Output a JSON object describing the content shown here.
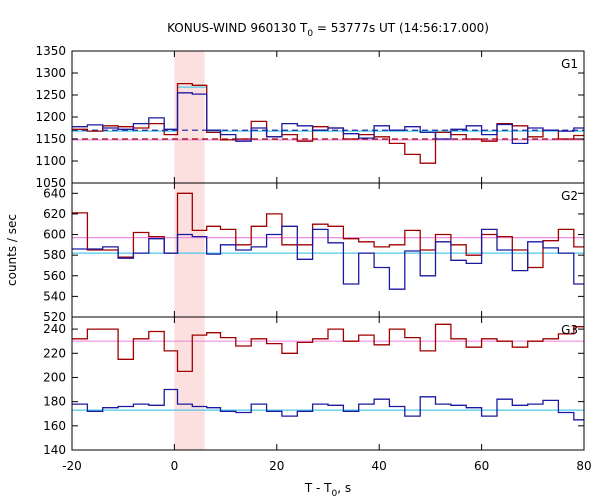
{
  "chart_data": {
    "type": "line",
    "title": "KONUS-WIND 960130 T",
    "title_sub": "0",
    "title_rest": " = 53777s UT (14:56:17.000)",
    "xlabel": "T - T",
    "xlabel_sub": "0",
    "xlabel_rest": ", s",
    "ylabel": "counts / sec",
    "xlim": [
      -20,
      80
    ],
    "xticks": [
      -20,
      0,
      20,
      40,
      60,
      80
    ],
    "xticklabels": [
      "-20",
      "0",
      "20",
      "40",
      "60",
      "80"
    ],
    "highlight_interval": [
      0,
      5.9
    ],
    "colors": {
      "dark_red": "#a00000",
      "dark_blue": "#1a1aa0",
      "cyan": "#4fc8e8",
      "pink": "#ee8ee0",
      "highlight": "#fbd6d6"
    },
    "panels": [
      {
        "label": "G1",
        "ylim": [
          1050,
          1350
        ],
        "yticks": [
          1050,
          1100,
          1150,
          1200,
          1250,
          1300,
          1350
        ],
        "yticklabels": [
          "1050",
          "1100",
          "1150",
          "1200",
          "1250",
          "1300",
          "1350"
        ],
        "bins": [
          -20,
          -17,
          -14,
          -11,
          -8,
          -5,
          -2,
          0.6,
          3.5,
          6.3,
          9,
          12,
          15,
          18,
          21,
          24,
          27,
          30,
          33,
          36,
          39,
          42,
          45,
          48,
          51,
          54,
          57,
          60,
          63,
          66,
          69,
          72,
          75,
          78,
          80
        ],
        "series": [
          {
            "name": "",
            "color_key": "dark_red",
            "values": [
              1172,
              1168,
              1180,
              1178,
              1175,
              1185,
              1160,
              1276,
              1272,
              1165,
              1148,
              1150,
              1190,
              1155,
              1160,
              1145,
              1178,
              1175,
              1150,
              1160,
              1155,
              1140,
              1115,
              1095,
              1165,
              1160,
              1150,
              1145,
              1185,
              1180,
              1155,
              1170,
              1150,
              1158
            ]
          },
          {
            "name": "",
            "color_key": "dark_blue",
            "values": [
              1178,
              1182,
              1175,
              1172,
              1185,
              1198,
              1172,
              1255,
              1252,
              1170,
              1160,
              1145,
              1175,
              1155,
              1185,
              1180,
              1170,
              1175,
              1162,
              1152,
              1180,
              1170,
              1178,
              1165,
              1150,
              1172,
              1180,
              1160,
              1183,
              1140,
              1175,
              1170,
              1168,
              1175
            ]
          }
        ],
        "fits": [
          {
            "color_key": "cyan",
            "values": [
              1168,
              1168,
              1168,
              1168,
              1168,
              1168,
              1168,
              1268,
              1268,
              1168,
              1168,
              1168,
              1168,
              1168,
              1168,
              1168,
              1168,
              1168,
              1168,
              1168,
              1168,
              1168,
              1168,
              1168,
              1168,
              1168,
              1168,
              1168,
              1168,
              1168,
              1168,
              1168,
              1168,
              1168
            ]
          },
          {
            "color_key": "pink",
            "values": [
              1148,
              1148,
              1148,
              1148,
              1148,
              1148,
              1148,
              1148,
              1148,
              1148,
              1148,
              1148,
              1148,
              1148,
              1148,
              1148,
              1148,
              1148,
              1148,
              1148,
              1148,
              1148,
              1148,
              1148,
              1148,
              1148,
              1148,
              1148,
              1148,
              1148,
              1148,
              1148,
              1148,
              1148
            ]
          }
        ],
        "dashed": [
          {
            "color_key": "dark_blue",
            "x": [
              -20,
              80
            ],
            "y": [
              1170,
              1170
            ]
          },
          {
            "color_key": "dark_red",
            "x": [
              -20,
              80
            ],
            "y": [
              1150,
              1150
            ]
          }
        ]
      },
      {
        "label": "G2",
        "ylim": [
          520,
          650
        ],
        "yticks": [
          520,
          540,
          560,
          580,
          600,
          620,
          640
        ],
        "yticklabels": [
          "520",
          "540",
          "560",
          "580",
          "600",
          "620",
          "640"
        ],
        "bins": [
          -20,
          -17,
          -14,
          -11,
          -8,
          -5,
          -2,
          0.6,
          3.5,
          6.3,
          9,
          12,
          15,
          18,
          21,
          24,
          27,
          30,
          33,
          36,
          39,
          42,
          45,
          48,
          51,
          54,
          57,
          60,
          63,
          66,
          69,
          72,
          75,
          78,
          80
        ],
        "series": [
          {
            "name": "",
            "color_key": "dark_red",
            "values": [
              621,
              585,
              585,
              578,
              602,
              598,
              582,
              640,
              604,
              608,
              605,
              590,
              608,
              620,
              590,
              590,
              610,
              608,
              596,
              593,
              588,
              590,
              604,
              585,
              600,
              590,
              580,
              600,
              598,
              585,
              568,
              594,
              605,
              588
            ]
          },
          {
            "name": "",
            "color_key": "dark_blue",
            "values": [
              586,
              586,
              588,
              577,
              582,
              596,
              582,
              600,
              598,
              581,
              590,
              585,
              588,
              600,
              608,
              576,
              605,
              592,
              552,
              582,
              568,
              547,
              584,
              560,
              593,
              575,
              572,
              605,
              585,
              565,
              593,
              587,
              582,
              552
            ]
          }
        ],
        "fits": [
          {
            "color_key": "cyan",
            "values": [
              582,
              582,
              582,
              582,
              582,
              582,
              582,
              582,
              582,
              582,
              582,
              582,
              582,
              582,
              582,
              582,
              582,
              582,
              582,
              582,
              582,
              582,
              582,
              582,
              582,
              582,
              582,
              582,
              582,
              582,
              582,
              582,
              582,
              582
            ]
          },
          {
            "color_key": "pink",
            "values": [
              597,
              597,
              597,
              597,
              597,
              597,
              597,
              597,
              597,
              597,
              597,
              597,
              597,
              597,
              597,
              597,
              597,
              597,
              597,
              597,
              597,
              597,
              597,
              597,
              597,
              597,
              597,
              597,
              597,
              597,
              597,
              597,
              597,
              597
            ]
          }
        ],
        "dashed": []
      },
      {
        "label": "G3",
        "ylim": [
          140,
          250
        ],
        "yticks": [
          140,
          160,
          180,
          200,
          220,
          240
        ],
        "yticklabels": [
          "140",
          "160",
          "180",
          "200",
          "220",
          "240"
        ],
        "bins": [
          -20,
          -17,
          -14,
          -11,
          -8,
          -5,
          -2,
          0.6,
          3.5,
          6.3,
          9,
          12,
          15,
          18,
          21,
          24,
          27,
          30,
          33,
          36,
          39,
          42,
          45,
          48,
          51,
          54,
          57,
          60,
          63,
          66,
          69,
          72,
          75,
          78,
          80
        ],
        "series": [
          {
            "name": "",
            "color_key": "dark_red",
            "values": [
              232,
              240,
              240,
              215,
              232,
              238,
              222,
              205,
              235,
              237,
              233,
              226,
              232,
              228,
              220,
              229,
              232,
              240,
              230,
              235,
              227,
              240,
              233,
              222,
              244,
              232,
              225,
              232,
              230,
              225,
              230,
              232,
              236,
              242
            ]
          },
          {
            "name": "",
            "color_key": "dark_blue",
            "values": [
              178,
              172,
              175,
              176,
              178,
              177,
              190,
              178,
              176,
              175,
              172,
              171,
              178,
              172,
              168,
              172,
              178,
              177,
              172,
              178,
              182,
              176,
              168,
              184,
              178,
              177,
              175,
              168,
              182,
              177,
              178,
              181,
              171,
              165
            ]
          }
        ],
        "fits": [
          {
            "color_key": "cyan",
            "values": [
              173,
              173,
              173,
              173,
              173,
              173,
              173,
              173,
              173,
              173,
              173,
              173,
              173,
              173,
              173,
              173,
              173,
              173,
              173,
              173,
              173,
              173,
              173,
              173,
              173,
              173,
              173,
              173,
              173,
              173,
              173,
              173,
              173,
              173
            ]
          },
          {
            "color_key": "pink",
            "values": [
              230,
              230,
              230,
              230,
              230,
              230,
              230,
              230,
              230,
              230,
              230,
              230,
              230,
              230,
              230,
              230,
              230,
              230,
              230,
              230,
              230,
              230,
              230,
              230,
              230,
              230,
              230,
              230,
              230,
              230,
              230,
              230,
              230,
              230
            ]
          }
        ],
        "dashed": []
      }
    ]
  }
}
